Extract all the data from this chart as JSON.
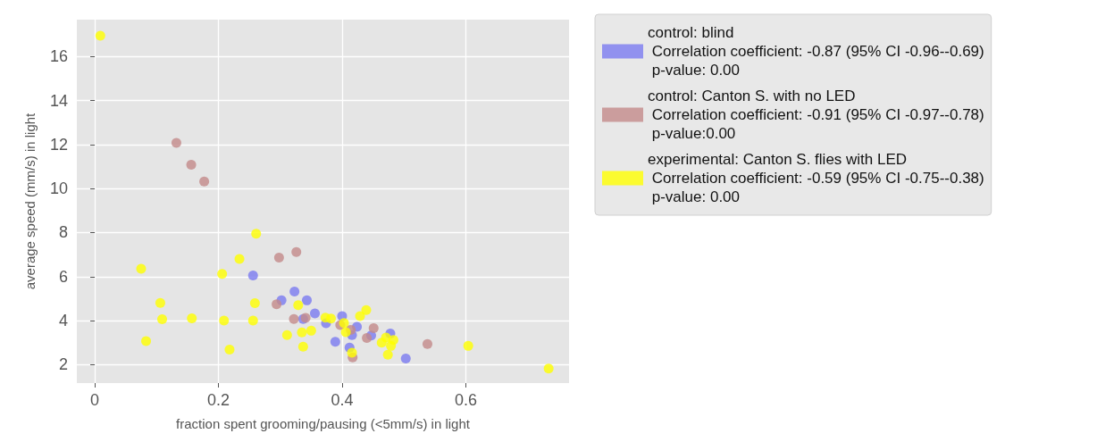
{
  "chart_data": {
    "type": "scatter",
    "xlabel": "fraction spent grooming/pausing (<5mm/s) in light",
    "ylabel": "average speed (mm/s) in light",
    "xlim": [
      -0.029,
      0.767
    ],
    "ylim": [
      1.16,
      17.68
    ],
    "xticks": [
      0,
      {
        "value": 0.2,
        "label": "0.2"
      },
      {
        "value": 0.4,
        "label": "0.4"
      },
      {
        "value": 0.6,
        "label": "0.6"
      }
    ],
    "yticks": [
      2,
      4,
      6,
      8,
      10,
      12,
      14,
      16
    ],
    "grid": true,
    "legend": "top right",
    "marker": "circle",
    "series": [
      {
        "name": "control: blind\n Correlation coefficient: -0.87 (95% CI -0.96--0.69)\n p-value: 0.00",
        "color": "#7b7bf0",
        "x": [
          0.256,
          0.302,
          0.323,
          0.343,
          0.356,
          0.337,
          0.374,
          0.4,
          0.424,
          0.416,
          0.389,
          0.412,
          0.447,
          0.478,
          0.503
        ],
        "values": [
          6.05,
          4.92,
          5.32,
          4.92,
          4.33,
          4.07,
          3.88,
          4.2,
          3.72,
          3.34,
          3.04,
          2.77,
          3.32,
          3.41,
          2.28
        ]
      },
      {
        "name": "control: Canton S. with no LED\n Correlation coefficient: -0.91 (95% CI -0.97--0.78)\n p-value:0.00",
        "color": "#c38a8a",
        "x": [
          0.132,
          0.156,
          0.177,
          0.298,
          0.326,
          0.294,
          0.322,
          0.341,
          0.397,
          0.414,
          0.417,
          0.44,
          0.451,
          0.538
        ],
        "values": [
          12.08,
          11.08,
          10.32,
          6.86,
          7.12,
          4.74,
          4.07,
          4.12,
          3.8,
          3.58,
          2.33,
          3.21,
          3.66,
          2.94
        ]
      },
      {
        "name": "experimental: Canton S. flies with LED\n Correlation coefficient: -0.59 (95% CI -0.75--0.38)\n p-value: 0.00",
        "color": "#ffff00",
        "x": [
          0.009,
          0.075,
          0.106,
          0.109,
          0.157,
          0.083,
          0.206,
          0.234,
          0.261,
          0.209,
          0.218,
          0.256,
          0.259,
          0.311,
          0.329,
          0.335,
          0.337,
          0.35,
          0.373,
          0.382,
          0.403,
          0.406,
          0.416,
          0.429,
          0.439,
          0.464,
          0.471,
          0.483,
          0.479,
          0.474,
          0.604,
          0.734
        ],
        "values": [
          16.95,
          6.36,
          4.8,
          4.06,
          4.1,
          3.07,
          6.12,
          6.8,
          7.95,
          4.0,
          2.68,
          4.0,
          4.79,
          3.34,
          4.7,
          3.46,
          2.81,
          3.54,
          4.13,
          4.09,
          3.89,
          3.47,
          2.54,
          4.2,
          4.48,
          3.0,
          3.23,
          3.12,
          2.85,
          2.45,
          2.85,
          1.82
        ]
      }
    ]
  }
}
